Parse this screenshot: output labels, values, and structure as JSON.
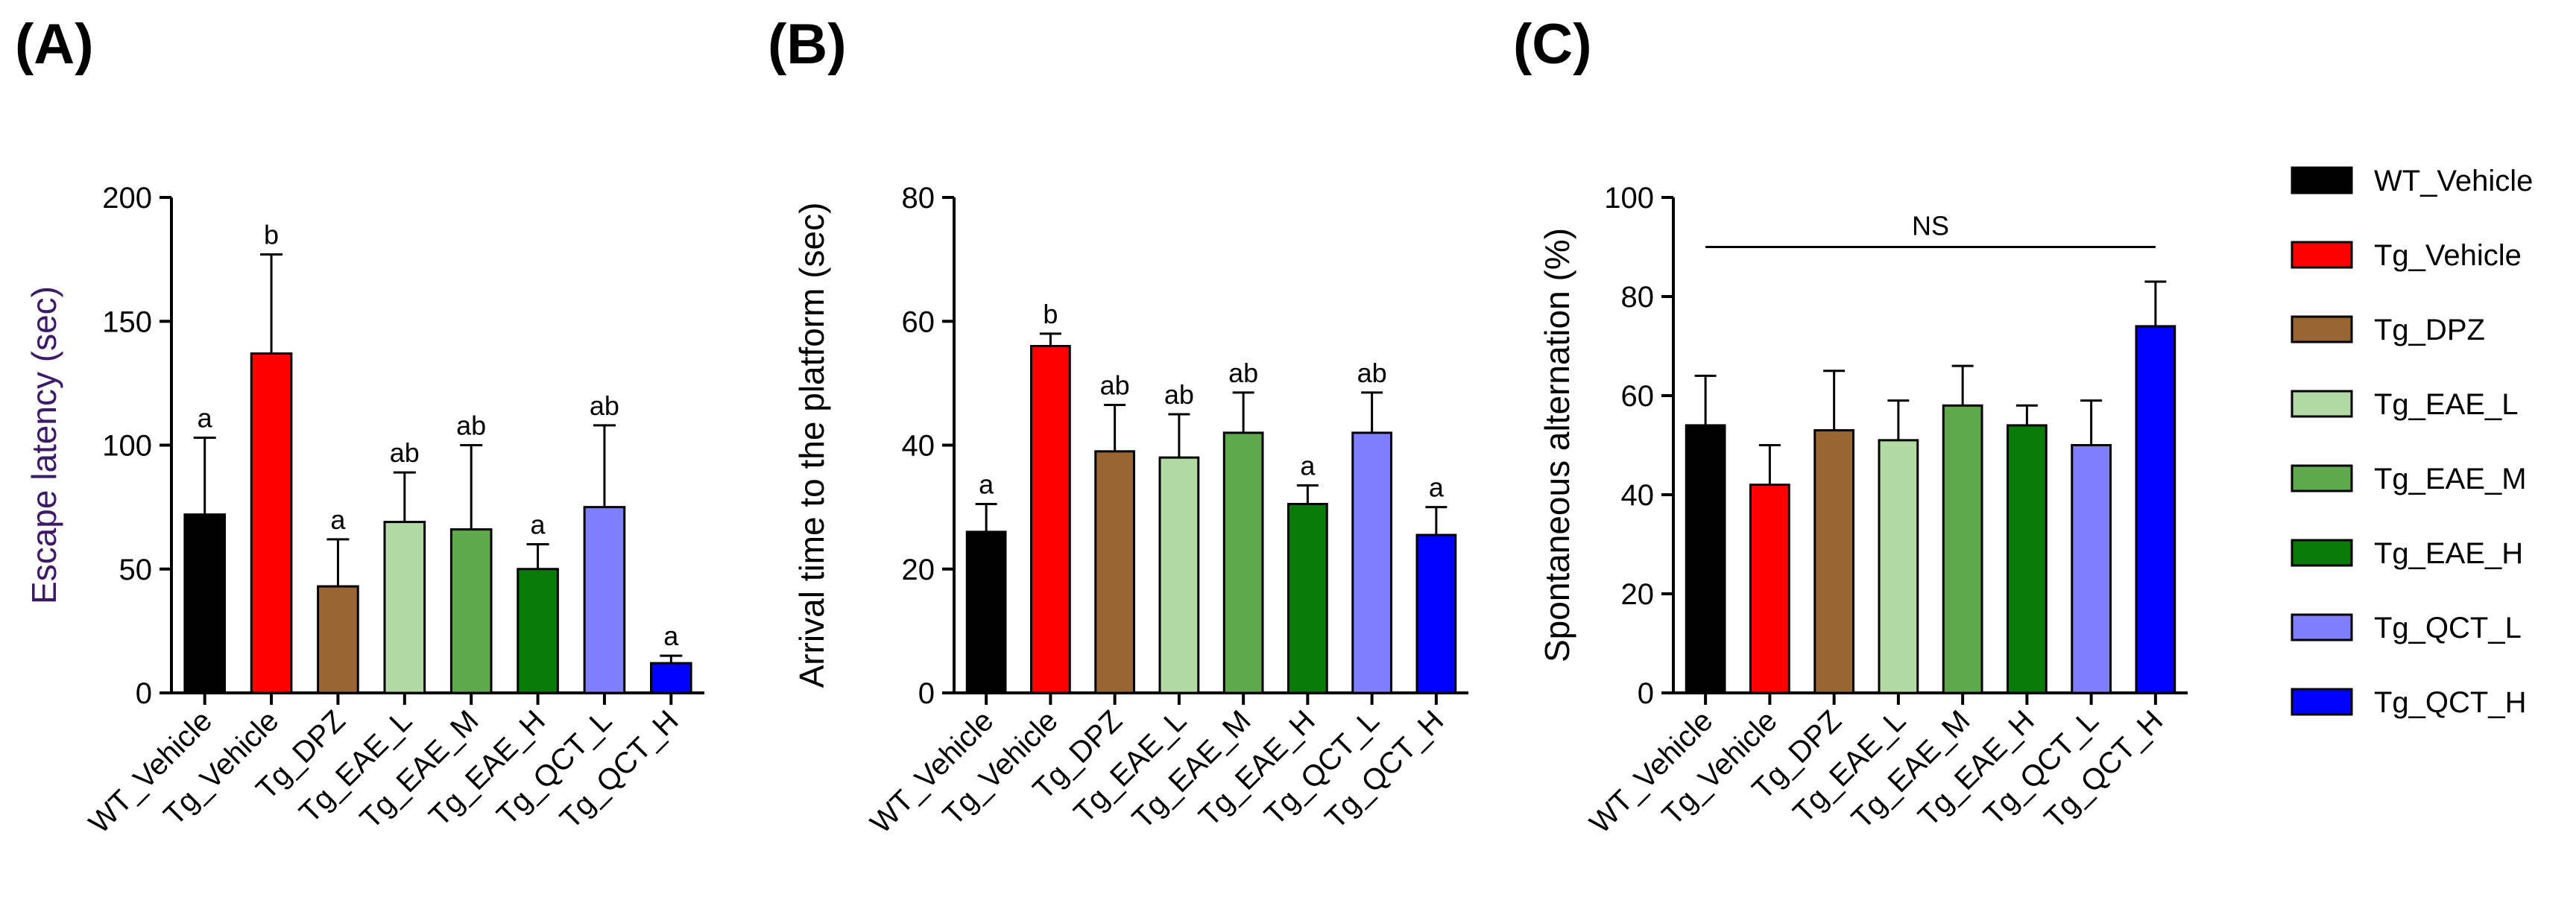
{
  "groups": [
    {
      "name": "WT_Vehicle",
      "color": "#000000"
    },
    {
      "name": "Tg_Vehicle",
      "color": "#ff0000"
    },
    {
      "name": "Tg_DPZ",
      "color": "#996633"
    },
    {
      "name": "Tg_EAE_L",
      "color": "#b3d9a5"
    },
    {
      "name": "Tg_EAE_M",
      "color": "#5fa84e"
    },
    {
      "name": "Tg_EAE_H",
      "color": "#0a7a0a"
    },
    {
      "name": "Tg_QCT_L",
      "color": "#8080ff"
    },
    {
      "name": "Tg_QCT_H",
      "color": "#0000ff"
    }
  ],
  "chart_data": [
    {
      "type": "bar",
      "panel": "(A)",
      "ylabel": "Escape latency (sec)",
      "ylabel_color": "#3d1a66",
      "ylim": [
        0,
        200
      ],
      "yticks": [
        0,
        50,
        100,
        150,
        200
      ],
      "categories": [
        "WT_Vehicle",
        "Tg_Vehicle",
        "Tg_DPZ",
        "Tg_EAE_L",
        "Tg_EAE_M",
        "Tg_EAE_H",
        "Tg_QCT_L",
        "Tg_QCT_H"
      ],
      "values": [
        72,
        137,
        43,
        69,
        66,
        50,
        75,
        12
      ],
      "errors": [
        31,
        40,
        19,
        20,
        34,
        10,
        33,
        3
      ],
      "annotations": [
        "a",
        "b",
        "a",
        "ab",
        "ab",
        "a",
        "ab",
        "a"
      ]
    },
    {
      "type": "bar",
      "panel": "(B)",
      "ylabel": "Arrival time to the platform (sec)",
      "ylabel_color": "#000000",
      "ylim": [
        0,
        80
      ],
      "yticks": [
        0,
        20,
        40,
        60,
        80
      ],
      "categories": [
        "WT_Vehicle",
        "Tg_Vehicle",
        "Tg_DPZ",
        "Tg_EAE_L",
        "Tg_EAE_M",
        "Tg_EAE_H",
        "Tg_QCT_L",
        "Tg_QCT_H"
      ],
      "values": [
        26,
        56,
        39,
        38,
        42,
        30.5,
        42,
        25.5
      ],
      "errors": [
        4.5,
        2,
        7.5,
        7,
        6.5,
        3,
        6.5,
        4.5
      ],
      "annotations": [
        "a",
        "b",
        "ab",
        "ab",
        "ab",
        "a",
        "ab",
        "a"
      ]
    },
    {
      "type": "bar",
      "panel": "(C)",
      "ylabel": "Spontaneous alternation (%)",
      "ylabel_color": "#000000",
      "ylim": [
        0,
        100
      ],
      "yticks": [
        0,
        20,
        40,
        60,
        80,
        100
      ],
      "categories": [
        "WT_Vehicle",
        "Tg_Vehicle",
        "Tg_DPZ",
        "Tg_EAE_L",
        "Tg_EAE_M",
        "Tg_EAE_H",
        "Tg_QCT_L",
        "Tg_QCT_H"
      ],
      "values": [
        54,
        42,
        53,
        51,
        58,
        54,
        50,
        74
      ],
      "errors": [
        10,
        8,
        12,
        8,
        8,
        4,
        9,
        9
      ],
      "annotations": [
        "",
        "",
        "",
        "",
        "",
        "",
        "",
        ""
      ],
      "significance_bar": {
        "label": "NS",
        "from": "WT_Vehicle",
        "to": "Tg_QCT_H",
        "level": 90
      }
    }
  ]
}
